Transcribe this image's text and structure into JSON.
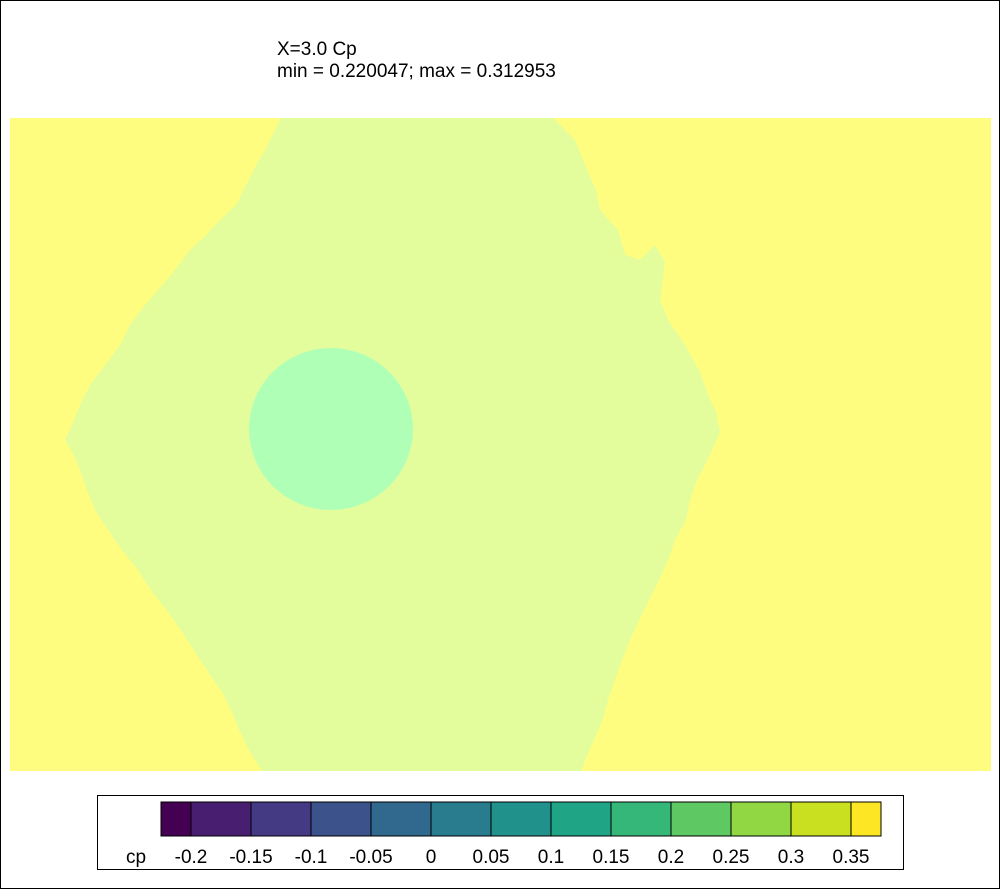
{
  "chart_data": {
    "type": "heatmap",
    "title": "X=3.0 Cp",
    "subtitle": "min = 0.220047; max = 0.312953",
    "variable": "cp",
    "colorbar": {
      "label": "cp",
      "ticks": [
        "-0.2",
        "-0.15",
        "-0.1",
        "-0.05",
        "0",
        "0.05",
        "0.1",
        "0.15",
        "0.2",
        "0.25",
        "0.3",
        "0.35"
      ],
      "levels": [
        -0.225,
        -0.2,
        -0.15,
        -0.1,
        -0.05,
        0,
        0.05,
        0.1,
        0.15,
        0.2,
        0.25,
        0.3,
        0.35,
        0.375
      ],
      "colors": [
        "#440154",
        "#481f70",
        "#443983",
        "#3b528b",
        "#31688e",
        "#287c8e",
        "#21918c",
        "#20a486",
        "#35b779",
        "#5ec962",
        "#90d743",
        "#c8e020",
        "#fde725"
      ]
    },
    "regions": [
      {
        "name": "outer field",
        "value_range": [
          0.3,
          0.35
        ],
        "color": "#fffd7f"
      },
      {
        "name": "diamond region",
        "value_range": [
          0.25,
          0.3
        ],
        "color": "#e3fd9d"
      },
      {
        "name": "circular core",
        "value_range": [
          0.2,
          0.25
        ],
        "color": "#b0ffb6"
      }
    ],
    "field_min": 0.220047,
    "field_max": 0.312953
  }
}
